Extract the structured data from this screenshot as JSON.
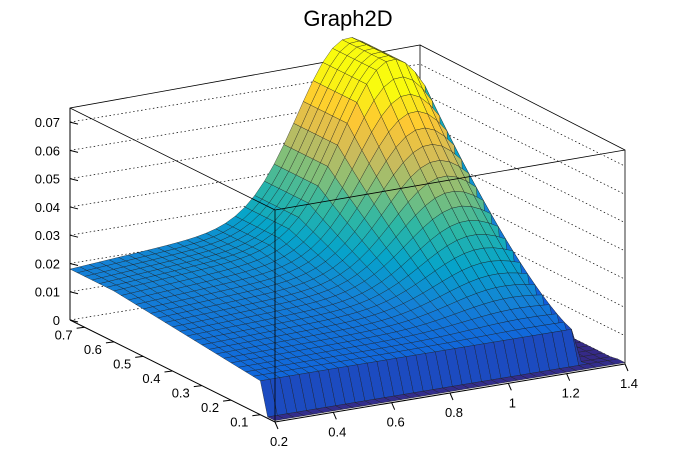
{
  "chart_data": {
    "type": "surface3d",
    "title": "Graph2D",
    "x_ticks": [
      "0.2",
      "0.4",
      "0.6",
      "0.8",
      "1",
      "1.2",
      "1.4"
    ],
    "y_ticks": [
      "0.1",
      "0.2",
      "0.3",
      "0.4",
      "0.5",
      "0.6",
      "0.7"
    ],
    "z_ticks": [
      "0",
      "0.01",
      "0.02",
      "0.03",
      "0.04",
      "0.05",
      "0.06",
      "0.07"
    ],
    "xlim": [
      0.2,
      1.4
    ],
    "ylim": [
      0.05,
      0.75
    ],
    "zlim": [
      0,
      0.075
    ],
    "grid": true,
    "colormap": [
      "#352a87",
      "#0f5cdd",
      "#1481d6",
      "#06a4ca",
      "#2eb7a4",
      "#87bf77",
      "#d1bb59",
      "#fec832",
      "#f9fb0e"
    ],
    "surface_peak": {
      "x": 1.15,
      "y": 0.6,
      "z": 0.074
    },
    "surface_shape": "wedge-shaped surface with a ridge peaking near x≈1.15, falling to zero at large x and at small x; near zero for low y"
  }
}
